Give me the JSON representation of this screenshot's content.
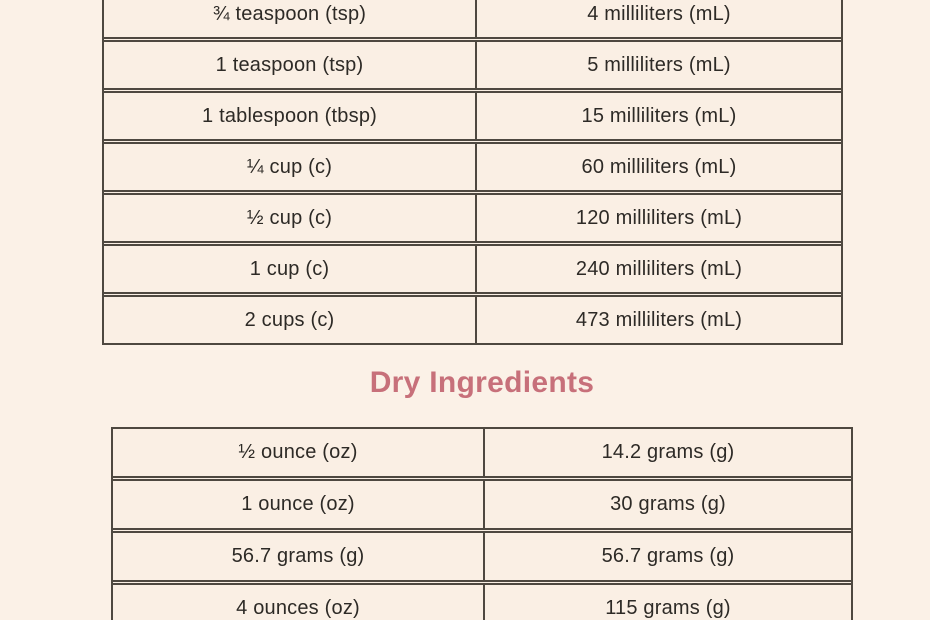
{
  "theme": {
    "page_background": "#fbf1e7",
    "cell_background": "#faefe4",
    "table_border_color": "#4e4840",
    "body_text_color": "#2d2a26",
    "heading_accent_color": "#c7707a"
  },
  "liquid_table": {
    "rows": [
      {
        "us": "¾ teaspoon (tsp)",
        "metric": "4 milliliters (mL)"
      },
      {
        "us": "1 teaspoon (tsp)",
        "metric": "5 milliliters (mL)"
      },
      {
        "us": "1 tablespoon (tbsp)",
        "metric": "15 milliliters (mL)"
      },
      {
        "us": "¼ cup (c)",
        "metric": "60 milliliters (mL)"
      },
      {
        "us": "½ cup (c)",
        "metric": "120 milliliters (mL)"
      },
      {
        "us": "1 cup (c)",
        "metric": "240 milliliters (mL)"
      },
      {
        "us": "2 cups (c)",
        "metric": "473 milliliters (mL)"
      }
    ]
  },
  "dry_section": {
    "heading": "Dry Ingredients",
    "rows": [
      {
        "us": "½ ounce (oz)",
        "metric": "14.2 grams (g)"
      },
      {
        "us": "1 ounce (oz)",
        "metric": "30 grams (g)"
      },
      {
        "us": "56.7 grams (g)",
        "metric": "56.7 grams (g)"
      },
      {
        "us": "4 ounces (oz)",
        "metric": "115 grams (g)"
      }
    ]
  }
}
